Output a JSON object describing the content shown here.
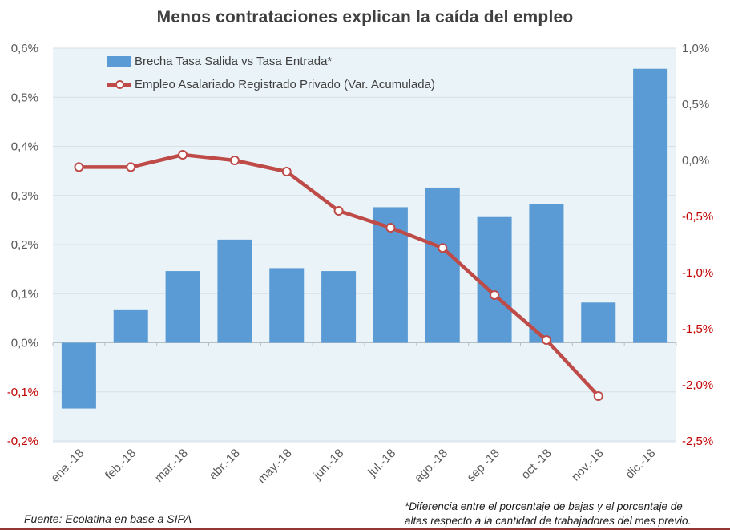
{
  "colors": {
    "bar": "#5B9BD5",
    "line": "#BE4B48",
    "plot_bg": "#E9F3F8",
    "gridline": "#D8DFE6",
    "axis_line": "#B6BEC6",
    "tick": "#595959",
    "negative_tick": "#C00000",
    "title": "#404040",
    "bottom_rule": "#943634"
  },
  "chart_data": {
    "type": "combo",
    "title": "Menos contrataciones explican la caída del empleo",
    "categories": [
      "ene.-18",
      "feb.-18",
      "mar.-18",
      "abr.-18",
      "may.-18",
      "jun.-18",
      "jul.-18",
      "ago.-18",
      "sep.-18",
      "oct.-18",
      "nov.-18",
      "dic.-18"
    ],
    "series": [
      {
        "name": "Brecha Tasa Salida vs Tasa Entrada*",
        "type": "bar",
        "axis": "left",
        "color": "#5B9BD5",
        "values": [
          -0.134,
          0.068,
          0.146,
          0.21,
          0.152,
          0.146,
          0.276,
          0.316,
          0.256,
          0.282,
          0.082,
          0.558
        ]
      },
      {
        "name": "Empleo Asalariado Registrado Privado (Var. Acumulada)",
        "type": "line",
        "axis": "right",
        "color": "#BE4B48",
        "values": [
          -0.06,
          -0.06,
          0.05,
          0.0,
          -0.1,
          -0.45,
          -0.6,
          -0.78,
          -1.2,
          -1.6,
          -2.1,
          null
        ]
      }
    ],
    "left_axis": {
      "min": -0.2,
      "max": 0.6,
      "unit": "%",
      "ticks": [
        {
          "v": 0.6,
          "label": "0,6%"
        },
        {
          "v": 0.5,
          "label": "0,5%"
        },
        {
          "v": 0.4,
          "label": "0,4%"
        },
        {
          "v": 0.3,
          "label": "0,3%"
        },
        {
          "v": 0.2,
          "label": "0,2%"
        },
        {
          "v": 0.1,
          "label": "0,1%"
        },
        {
          "v": 0.0,
          "label": "0,0%"
        },
        {
          "v": -0.1,
          "label": "-0,1%"
        },
        {
          "v": -0.2,
          "label": "-0,2%"
        }
      ]
    },
    "right_axis": {
      "min": -2.5,
      "max": 1.0,
      "unit": "%",
      "ticks": [
        {
          "v": 1.0,
          "label": "1,0%"
        },
        {
          "v": 0.5,
          "label": "0,5%"
        },
        {
          "v": 0.0,
          "label": "0,0%"
        },
        {
          "v": -0.5,
          "label": "-0,5%"
        },
        {
          "v": -1.0,
          "label": "-1,0%"
        },
        {
          "v": -1.5,
          "label": "-1,5%"
        },
        {
          "v": -2.0,
          "label": "-2,0%"
        },
        {
          "v": -2.5,
          "label": "-2,5%"
        }
      ]
    },
    "legend_position": "top-left",
    "grid": true
  },
  "footer": {
    "source": "Fuente: Ecolatina en base a SIPA",
    "note_lines": [
      "*Diferencia entre el porcentaje de bajas y el porcentaje de",
      "altas respecto a la cantidad de trabajadores del mes previo."
    ]
  }
}
